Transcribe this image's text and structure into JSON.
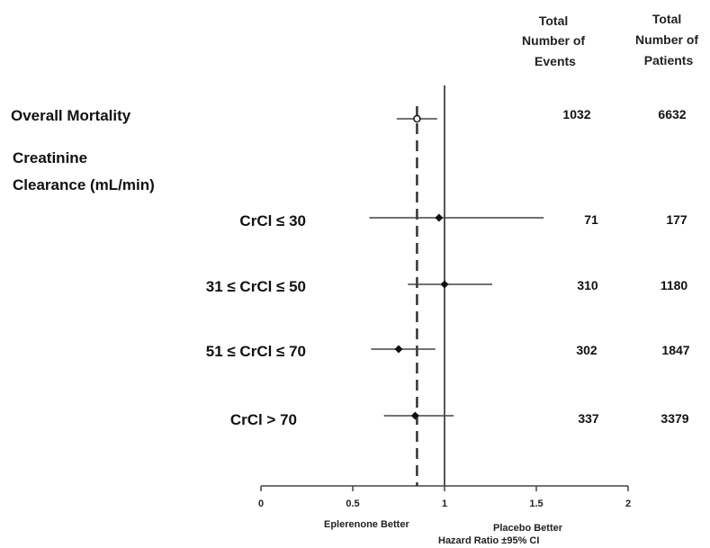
{
  "chart_data": {
    "type": "forest",
    "columns": {
      "events": [
        "Total",
        "Number of",
        "Events"
      ],
      "patients": [
        "Total",
        "Number of",
        "Patients"
      ]
    },
    "overall": {
      "label": "Overall Mortality",
      "hr": 0.85,
      "lo": 0.74,
      "hi": 0.96,
      "events": "1032",
      "patients": "6632",
      "marker": "open-circle"
    },
    "group_label": [
      "Creatinine",
      "Clearance (mL/min)"
    ],
    "subgroups": [
      {
        "label": "CrCl ≤ 30",
        "hr": 0.97,
        "lo": 0.59,
        "hi": 1.54,
        "events": "71",
        "patients": "177"
      },
      {
        "label": "31 ≤ CrCl ≤ 50",
        "hr": 1.0,
        "lo": 0.8,
        "hi": 1.26,
        "events": "310",
        "patients": "1180"
      },
      {
        "label": "51 ≤ CrCl ≤ 70",
        "hr": 0.75,
        "lo": 0.6,
        "hi": 0.95,
        "events": "302",
        "patients": "1847"
      },
      {
        "label": "CrCl > 70",
        "hr": 0.84,
        "lo": 0.67,
        "hi": 1.05,
        "events": "337",
        "patients": "3379"
      }
    ],
    "x_ticks": [
      "0",
      "0.5",
      "1",
      "1.5",
      "2"
    ],
    "x_tick_values": [
      0,
      0.5,
      1,
      1.5,
      2
    ],
    "xlim": [
      0,
      2
    ],
    "reference_line": 1,
    "overall_line": 0.85,
    "left_note": "Eplerenone Better",
    "right_note": "Placebo Better",
    "xlabel": "Hazard Ratio ±95% CI",
    "marker_color": "#111111",
    "line_color": "#444444"
  }
}
